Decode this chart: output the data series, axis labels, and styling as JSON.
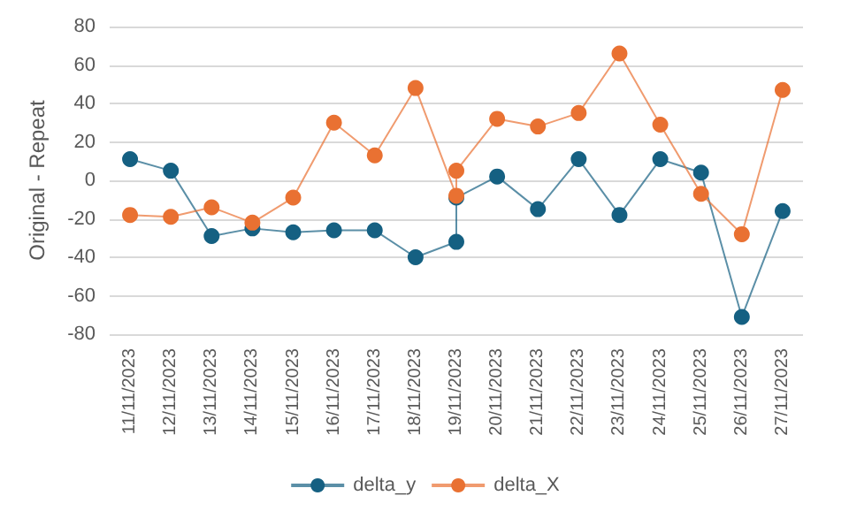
{
  "chart_data": {
    "type": "line",
    "ylabel": "Original - Repeat",
    "categories": [
      "11/11/2023",
      "12/11/2023",
      "13/11/2023",
      "14/11/2023",
      "15/11/2023",
      "16/11/2023",
      "17/11/2023",
      "18/11/2023",
      "19/11/2023",
      "20/11/2023",
      "21/11/2023",
      "22/11/2023",
      "23/11/2023",
      "24/11/2023",
      "25/11/2023",
      "26/11/2023",
      "27/11/2023"
    ],
    "series": [
      {
        "name": "delta_y",
        "color": "#156082",
        "x": [
          "11/11/2023",
          "12/11/2023",
          "13/11/2023",
          "14/11/2023",
          "15/11/2023",
          "16/11/2023",
          "17/11/2023",
          "18/11/2023",
          "19/11/2023",
          "19/11/2023",
          "20/11/2023",
          "21/11/2023",
          "22/11/2023",
          "23/11/2023",
          "24/11/2023",
          "25/11/2023",
          "26/11/2023",
          "27/11/2023"
        ],
        "values": [
          11,
          5,
          -29,
          -25,
          -27,
          -26,
          -26,
          -40,
          -32,
          -9,
          2,
          -15,
          11,
          -18,
          11,
          4,
          -71,
          -16
        ]
      },
      {
        "name": "delta_X",
        "color": "#e97132",
        "x": [
          "11/11/2023",
          "12/11/2023",
          "13/11/2023",
          "14/11/2023",
          "15/11/2023",
          "16/11/2023",
          "17/11/2023",
          "18/11/2023",
          "19/11/2023",
          "19/11/2023",
          "20/11/2023",
          "21/11/2023",
          "22/11/2023",
          "23/11/2023",
          "24/11/2023",
          "25/11/2023",
          "26/11/2023",
          "27/11/2023"
        ],
        "values": [
          -18,
          -19,
          -14,
          -22,
          -9,
          30,
          13,
          48,
          -8,
          5,
          32,
          28,
          35,
          66,
          29,
          -7,
          -28,
          47
        ]
      }
    ],
    "ylim": [
      -80,
      80
    ],
    "yticks": [
      -80,
      -60,
      -40,
      -20,
      0,
      20,
      40,
      60,
      80
    ],
    "grid": "y",
    "legend": "bottom",
    "marker": "circle",
    "line_style": "solid"
  }
}
